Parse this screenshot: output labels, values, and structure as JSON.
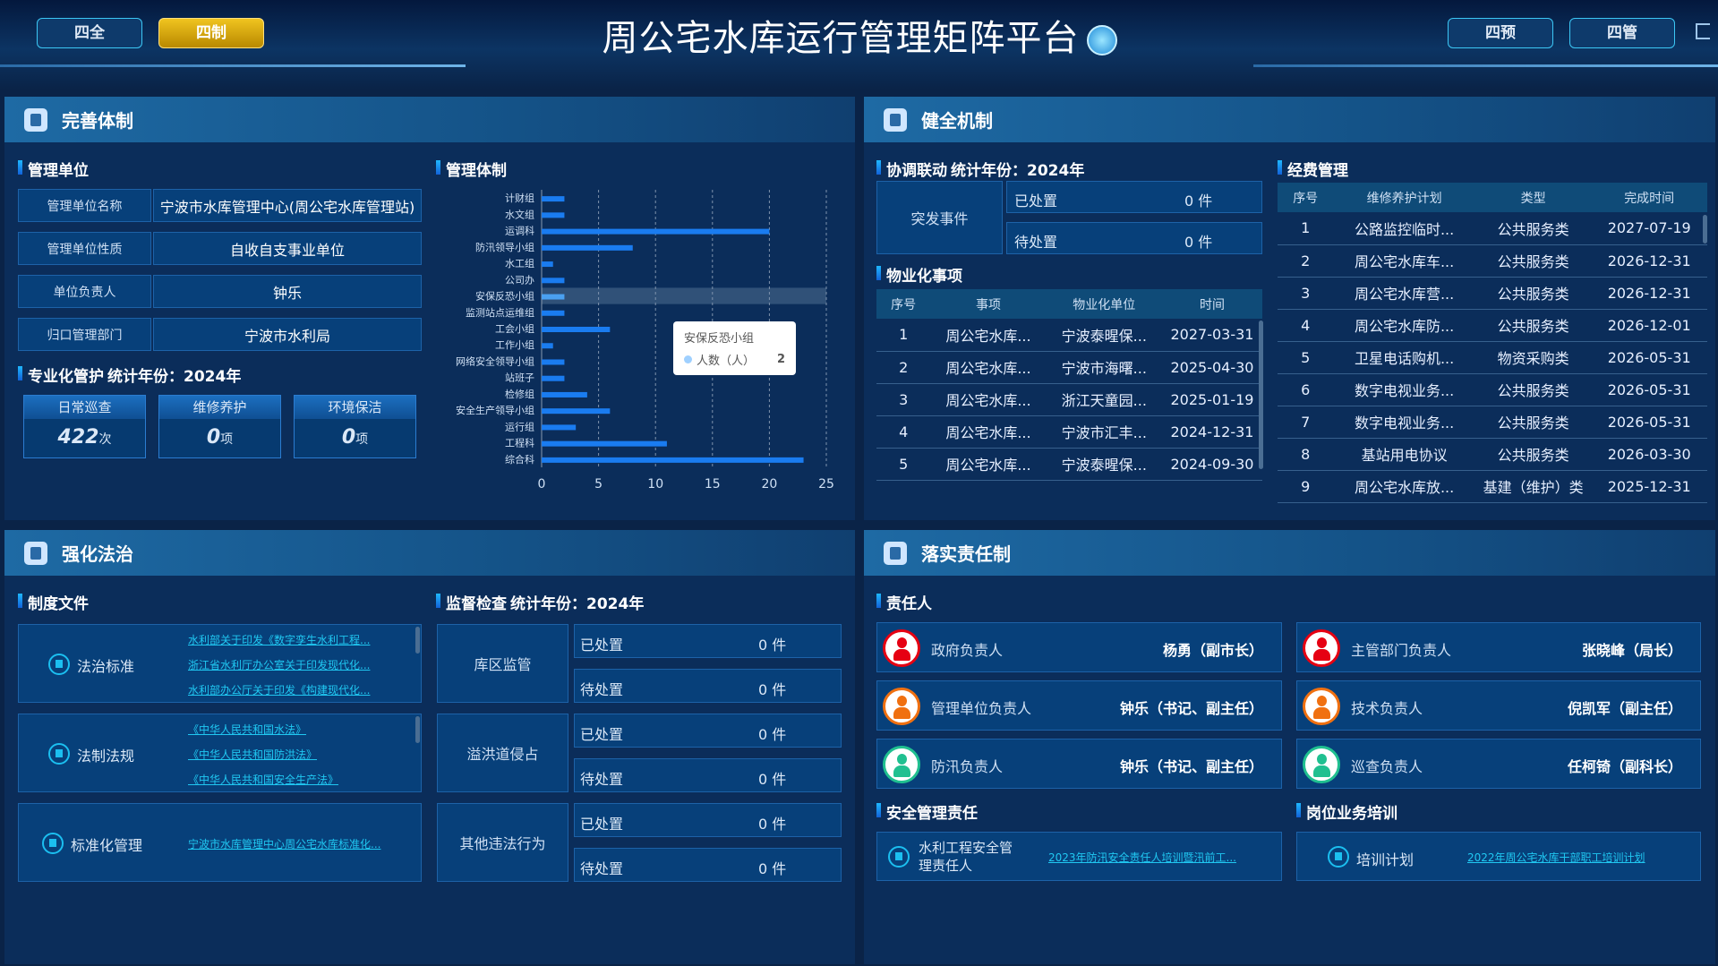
{
  "header": {
    "title": "周公宅水库运行管理矩阵平台",
    "nav_left": [
      "四全",
      "四制"
    ],
    "nav_right": [
      "四预",
      "四管"
    ],
    "active": "四制",
    "title_badge_icon": "toggle-icon",
    "logout_icon": "logout-icon"
  },
  "colors": {
    "accent": "#20c8f2",
    "active_nav": "#e0b010",
    "bar": "#1a7cf0",
    "panel": "#0b2d5a"
  },
  "p1": {
    "title": "完善体制",
    "unit": {
      "title": "管理单位",
      "rows": [
        {
          "label": "管理单位名称",
          "value": "宁波市水库管理中心(周公宅水库管理站)"
        },
        {
          "label": "管理单位性质",
          "value": "自收自支事业单位"
        },
        {
          "label": "单位负责人",
          "value": "钟乐"
        },
        {
          "label": "归口管理部门",
          "value": "宁波市水利局"
        }
      ]
    },
    "pro": {
      "title": "专业化管护",
      "year": "统计年份：2024年",
      "cards": [
        {
          "label": "日常巡查",
          "value": "422",
          "unit": "次"
        },
        {
          "label": "维修养护",
          "value": "0",
          "unit": "项"
        },
        {
          "label": "环境保洁",
          "value": "0",
          "unit": "项"
        }
      ]
    },
    "sys": {
      "title": "管理体制"
    }
  },
  "chart_data": {
    "type": "bar",
    "orientation": "horizontal",
    "categories": [
      "计财组",
      "水文组",
      "运调科",
      "防汛领导小组",
      "水工组",
      "公司办",
      "安保反恐小组",
      "监测站点运维组",
      "工会小组",
      "工作小组",
      "网络安全领导小组",
      "站班子",
      "检修组",
      "安全生产领导小组",
      "运行组",
      "工程科",
      "综合科"
    ],
    "series": [
      {
        "name": "人数（人）",
        "values": [
          2,
          2,
          20,
          8,
          1,
          2,
          2,
          2,
          6,
          1,
          2,
          2,
          4,
          6,
          3,
          11,
          23
        ]
      }
    ],
    "xlim": [
      0,
      25
    ],
    "xticks": [
      "0",
      "5",
      "10",
      "15",
      "20",
      "25"
    ],
    "grid": "vertical dashed",
    "highlight": "安保反恐小组",
    "tooltip": {
      "title": "安保反恐小组",
      "series": "人数（人）",
      "value": "2"
    }
  },
  "p2": {
    "title": "健全机制",
    "coord": {
      "title": "协调联动",
      "year": "统计年份：2024年",
      "event": "突发事件",
      "rows": [
        {
          "label": "已处置",
          "value": "0 件"
        },
        {
          "label": "待处置",
          "value": "0 件"
        }
      ]
    },
    "prop": {
      "title": "物业化事项",
      "headers": [
        "序号",
        "事项",
        "物业化单位",
        "时间"
      ],
      "rows": [
        [
          "1",
          "周公宅水库...",
          "宁波泰暒保...",
          "2027-03-31"
        ],
        [
          "2",
          "周公宅水库...",
          "宁波市海曙...",
          "2025-04-30"
        ],
        [
          "3",
          "周公宅水库...",
          "浙江天童园...",
          "2025-01-19"
        ],
        [
          "4",
          "周公宅水库...",
          "宁波市汇丰...",
          "2024-12-31"
        ],
        [
          "5",
          "周公宅水库...",
          "宁波泰暒保...",
          "2024-09-30"
        ]
      ]
    },
    "fund": {
      "title": "经费管理",
      "headers": [
        "序号",
        "维修养护计划",
        "类型",
        "完成时间"
      ],
      "rows": [
        [
          "1",
          "公路监控临时...",
          "公共服务类",
          "2027-07-19"
        ],
        [
          "2",
          "周公宅水库车...",
          "公共服务类",
          "2026-12-31"
        ],
        [
          "3",
          "周公宅水库营...",
          "公共服务类",
          "2026-12-31"
        ],
        [
          "4",
          "周公宅水库防...",
          "公共服务类",
          "2026-12-01"
        ],
        [
          "5",
          "卫星电话购机...",
          "物资采购类",
          "2026-05-31"
        ],
        [
          "6",
          "数字电视业务...",
          "公共服务类",
          "2026-05-31"
        ],
        [
          "7",
          "数字电视业务...",
          "公共服务类",
          "2026-05-31"
        ],
        [
          "8",
          "基站用电协议",
          "公共服务类",
          "2026-03-30"
        ],
        [
          "9",
          "周公宅水库放...",
          "基建（维护）类",
          "2025-12-31"
        ]
      ]
    }
  },
  "p3": {
    "title": "强化法治",
    "docs": {
      "title": "制度文件",
      "groups": [
        {
          "label": "法治标准",
          "links": [
            "水利部关于印发《数字孪生水利工程...",
            "浙江省水利厅办公室关于印发现代化...",
            "水利部办公厅关于印发《构建现代化..."
          ]
        },
        {
          "label": "法制法规",
          "links": [
            "《中华人民共和国水法》",
            "《中华人民共和国防洪法》",
            "《中华人民共和国安全生产法》"
          ]
        },
        {
          "label": "标准化管理",
          "links": [
            "宁波市水库管理中心周公宅水库标准化..."
          ]
        }
      ]
    },
    "sup": {
      "title": "监督检查",
      "year": "统计年份：2024年",
      "groups": [
        {
          "label": "库区监管",
          "rows": [
            {
              "label": "已处置",
              "value": "0 件"
            },
            {
              "label": "待处置",
              "value": "0 件"
            }
          ]
        },
        {
          "label": "溢洪道侵占",
          "rows": [
            {
              "label": "已处置",
              "value": "0 件"
            },
            {
              "label": "待处置",
              "value": "0 件"
            }
          ]
        },
        {
          "label": "其他违法行为",
          "rows": [
            {
              "label": "已处置",
              "value": "0 件"
            },
            {
              "label": "待处置",
              "value": "0 件"
            }
          ]
        }
      ]
    }
  },
  "p4": {
    "title": "落实责任制",
    "people": {
      "title": "责任人",
      "items": [
        {
          "role": "政府负责人",
          "name": "杨勇（副市长）",
          "color": "#e60012"
        },
        {
          "role": "主管部门负责人",
          "name": "张晓峰（局长）",
          "color": "#e60012"
        },
        {
          "role": "管理单位负责人",
          "name": "钟乐（书记、副主任）",
          "color": "#f07010"
        },
        {
          "role": "技术负责人",
          "name": "倪凯军（副主任）",
          "color": "#f07010"
        },
        {
          "role": "防汛负责人",
          "name": "钟乐（书记、副主任）",
          "color": "#20c090"
        },
        {
          "role": "巡查负责人",
          "name": "任柯锜（副科长）",
          "color": "#20c090"
        }
      ]
    },
    "safety": {
      "title": "安全管理责任",
      "label": "水利工程安全管理责任人",
      "link": "2023年防汛安全责任人培训暨汛前工..."
    },
    "train": {
      "title": "岗位业务培训",
      "label": "培训计划",
      "link": "2022年周公宅水库干部职工培训计划"
    }
  }
}
